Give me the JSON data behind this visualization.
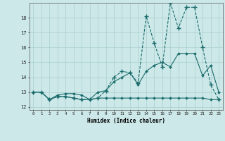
{
  "xlabel": "Humidex (Indice chaleur)",
  "background_color": "#cce8e8",
  "grid_color": "#aacfcf",
  "line_color": "#1a6b6b",
  "xlim": [
    -0.5,
    23.5
  ],
  "ylim": [
    11.8,
    19.0
  ],
  "yticks": [
    12,
    13,
    14,
    15,
    16,
    17,
    18
  ],
  "xticks": [
    0,
    1,
    2,
    3,
    4,
    5,
    6,
    7,
    8,
    9,
    10,
    11,
    12,
    13,
    14,
    15,
    16,
    17,
    18,
    19,
    20,
    21,
    22,
    23
  ],
  "series1_x": [
    0,
    1,
    2,
    3,
    4,
    5,
    6,
    7,
    8,
    9,
    10,
    11,
    12,
    13,
    14,
    15,
    16,
    17,
    18,
    19,
    20,
    21,
    22,
    23
  ],
  "series1_y": [
    13.0,
    13.0,
    12.5,
    12.7,
    12.7,
    12.6,
    12.5,
    12.5,
    12.6,
    12.6,
    12.6,
    12.6,
    12.6,
    12.6,
    12.6,
    12.6,
    12.6,
    12.6,
    12.6,
    12.6,
    12.6,
    12.6,
    12.5,
    12.5
  ],
  "series2_x": [
    0,
    1,
    2,
    3,
    4,
    5,
    6,
    7,
    8,
    9,
    10,
    11,
    12,
    13,
    14,
    15,
    16,
    17,
    18,
    19,
    20,
    21,
    22,
    23
  ],
  "series2_y": [
    13.0,
    13.0,
    12.5,
    12.8,
    12.9,
    12.9,
    12.8,
    12.5,
    13.0,
    13.1,
    13.7,
    14.0,
    14.3,
    13.5,
    14.4,
    14.8,
    15.0,
    14.7,
    15.6,
    15.6,
    15.6,
    14.1,
    14.8,
    13.0
  ],
  "series3_x": [
    0,
    1,
    2,
    3,
    4,
    5,
    6,
    7,
    8,
    9,
    10,
    11,
    12,
    13,
    14,
    15,
    16,
    17,
    18,
    19,
    20,
    21,
    22,
    23
  ],
  "series3_y": [
    13.0,
    13.0,
    12.5,
    12.7,
    12.7,
    12.6,
    12.5,
    12.5,
    12.6,
    13.1,
    14.0,
    14.4,
    14.3,
    13.6,
    18.1,
    16.3,
    14.7,
    19.0,
    17.3,
    18.7,
    18.7,
    16.0,
    13.5,
    12.5
  ]
}
